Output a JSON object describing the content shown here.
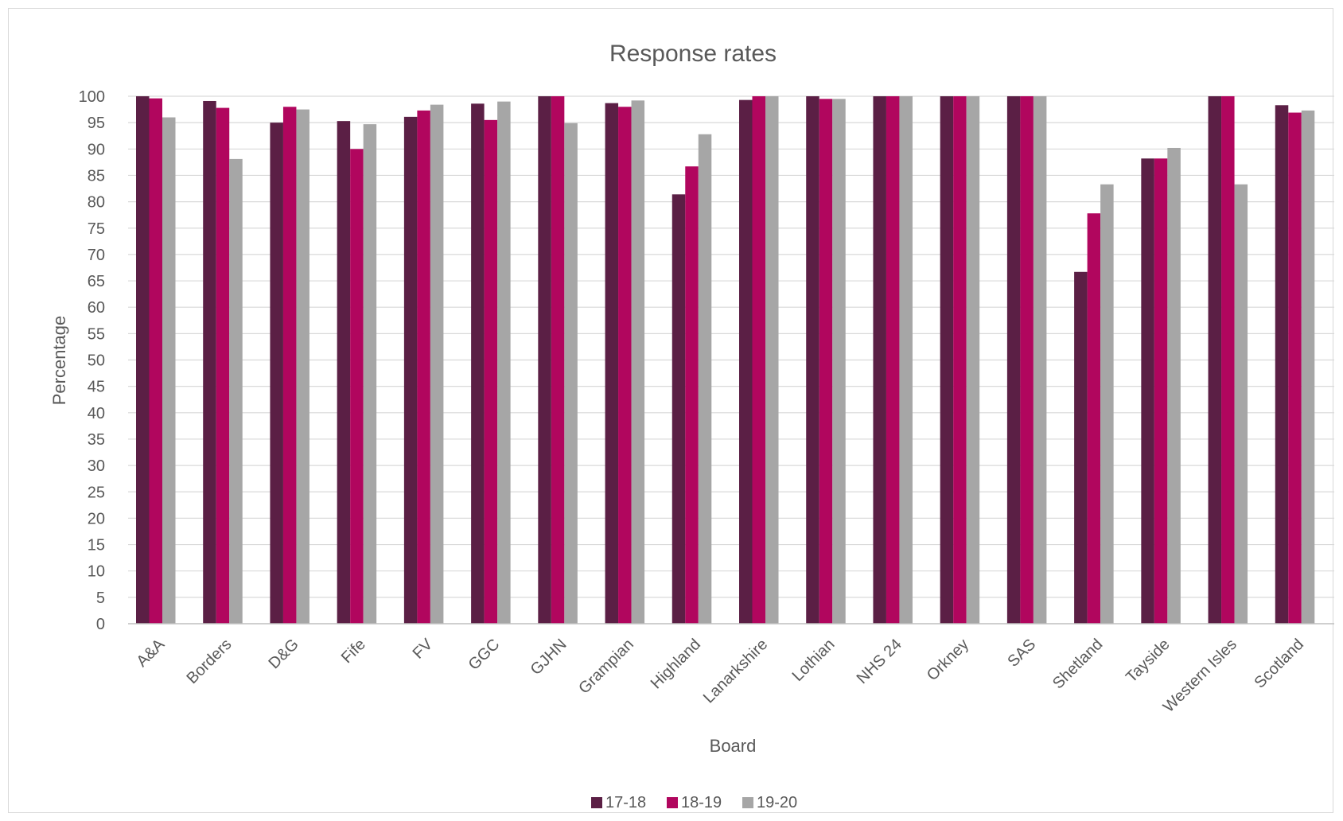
{
  "chart_data": {
    "type": "bar",
    "title": "Response rates",
    "xlabel": "Board",
    "ylabel": "Percentage",
    "ylim": [
      0,
      100
    ],
    "yticks": [
      0,
      5,
      10,
      15,
      20,
      25,
      30,
      35,
      40,
      45,
      50,
      55,
      60,
      65,
      70,
      75,
      80,
      85,
      90,
      95,
      100
    ],
    "grid": true,
    "legend_position": "bottom",
    "categories": [
      "A&A",
      "Borders",
      "D&G",
      "Fife",
      "FV",
      "GGC",
      "GJHN",
      "Grampian",
      "Highland",
      "Lanarkshire",
      "Lothian",
      "NHS 24",
      "Orkney",
      "SAS",
      "Shetland",
      "Tayside",
      "Western Isles",
      "Scotland"
    ],
    "series": [
      {
        "name": "17-18",
        "color": "#5b1f45",
        "values": [
          100,
          99.1,
          95.0,
          95.3,
          96.1,
          98.6,
          100,
          98.7,
          81.4,
          99.3,
          100,
          100,
          100,
          100,
          66.7,
          88.2,
          100,
          98.3
        ]
      },
      {
        "name": "18-19",
        "color": "#b1065e",
        "values": [
          99.6,
          97.8,
          98.0,
          90.0,
          97.3,
          95.5,
          100,
          98.0,
          86.7,
          100,
          99.5,
          100,
          100,
          100,
          77.8,
          88.2,
          100,
          96.9
        ]
      },
      {
        "name": "19-20",
        "color": "#a6a6a6",
        "values": [
          96.0,
          88.1,
          97.5,
          94.7,
          98.4,
          99.0,
          94.9,
          99.2,
          92.8,
          100,
          99.5,
          100,
          100,
          100,
          83.3,
          90.2,
          83.3,
          97.3
        ]
      }
    ]
  }
}
